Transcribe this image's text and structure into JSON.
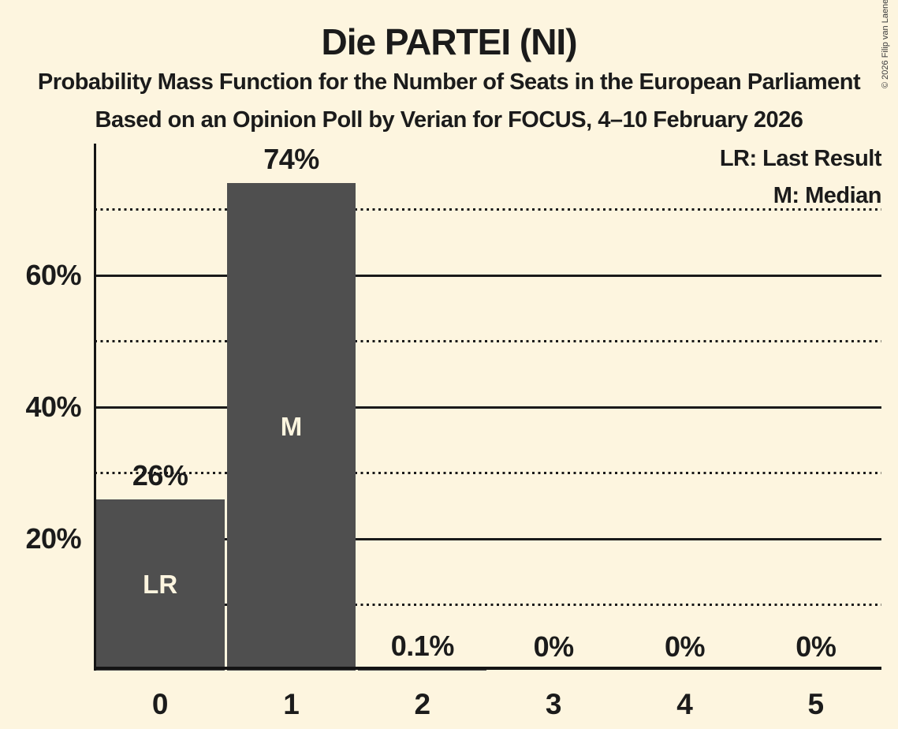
{
  "title": "Die PARTEI (NI)",
  "subtitle1": "Probability Mass Function for the Number of Seats in the European Parliament",
  "subtitle2": "Based on an Opinion Poll by Verian for FOCUS, 4–10 February 2026",
  "legend": {
    "lr": "LR: Last Result",
    "m": "M: Median"
  },
  "copyright": "© 2026 Filip van Laenen",
  "colors": {
    "background": "#fdf5df",
    "bar": "#4f4f4f",
    "text": "#1b1b1b",
    "gridline": "#1a1a1a",
    "bar_inner_label": "#fdf5df"
  },
  "chart_data": {
    "type": "bar",
    "title": "Die PARTEI (NI)",
    "categories": [
      "0",
      "1",
      "2",
      "3",
      "4",
      "5"
    ],
    "values": [
      26,
      74,
      0.1,
      0,
      0,
      0
    ],
    "bar_value_labels": [
      "26%",
      "74%",
      "0.1%",
      "0%",
      "0%",
      "0%"
    ],
    "bar_inner_labels": [
      "LR",
      "M",
      "",
      "",
      "",
      ""
    ],
    "xlabel": "",
    "ylabel": "",
    "ylim": [
      0,
      80
    ],
    "yticks_solid": [
      {
        "value": 20,
        "label": "20%"
      },
      {
        "value": 40,
        "label": "40%"
      },
      {
        "value": 60,
        "label": "60%"
      }
    ],
    "yticks_dotted": [
      10,
      30,
      50,
      70
    ],
    "grid": "horizontal-behind-bars",
    "legend_position": "top-right"
  }
}
